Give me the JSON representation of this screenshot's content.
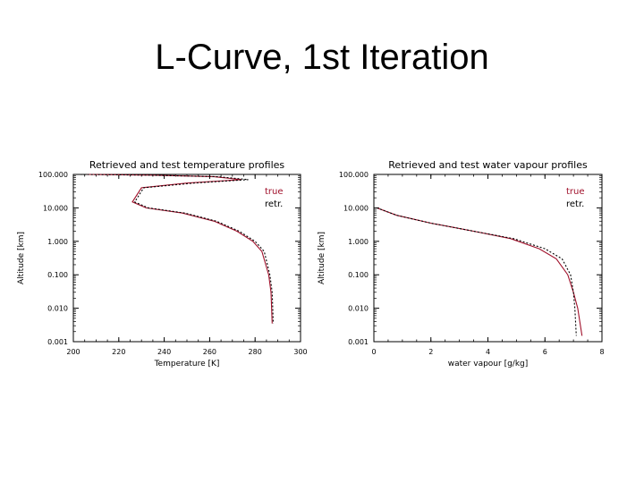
{
  "page_title": "L-Curve, 1st Iteration",
  "colors": {
    "true": "#a0102a",
    "retr": "#000000"
  },
  "chart_data": [
    {
      "type": "line",
      "title": "Retrieved and test temperature profiles",
      "xlabel": "Temperature [K]",
      "ylabel": "Altitude [km]",
      "xlim": [
        200,
        300
      ],
      "ylim": [
        0.001,
        100
      ],
      "y_scale": "log",
      "x_ticks": [
        "200",
        "220",
        "240",
        "260",
        "280",
        "300"
      ],
      "y_ticks": [
        "100.000",
        "10.000",
        "1.000",
        "0.100",
        "0.010",
        "0.001"
      ],
      "legend": "top-right",
      "series": [
        {
          "name": "true",
          "x": [
            206,
            235,
            262,
            274,
            250,
            230,
            226,
            232,
            248,
            262,
            272,
            279,
            283,
            286,
            287,
            287.5
          ],
          "y": [
            100,
            95,
            85,
            70,
            55,
            40,
            15,
            10,
            7,
            4,
            2,
            1,
            0.5,
            0.1,
            0.03,
            0.0035
          ]
        },
        {
          "name": "retr.",
          "x": [
            203,
            233,
            264,
            277,
            253,
            231,
            227,
            233,
            249,
            263,
            273,
            280,
            284,
            286.5,
            287.5,
            288
          ],
          "y": [
            100,
            95,
            85,
            70,
            55,
            40,
            15,
            10,
            7,
            4,
            2,
            1,
            0.5,
            0.1,
            0.03,
            0.0035
          ]
        }
      ]
    },
    {
      "type": "line",
      "title": "Retrieved and test water vapour profiles",
      "xlabel": "water vapour [g/kg]",
      "ylabel": "Altitude [km]",
      "xlim": [
        0,
        8
      ],
      "ylim": [
        0.001,
        100
      ],
      "y_scale": "log",
      "x_ticks": [
        "0",
        "2",
        "4",
        "6",
        "8"
      ],
      "y_ticks": [
        "100.000",
        "10.000",
        "1.000",
        "0.100",
        "0.010",
        "0.001"
      ],
      "legend": "top-right",
      "series": [
        {
          "name": "true",
          "x": [
            0.1,
            0.8,
            2,
            3.5,
            4.8,
            5.8,
            6.4,
            6.8,
            7,
            7.15,
            7.3
          ],
          "y": [
            10,
            6,
            3.5,
            2,
            1.2,
            0.6,
            0.3,
            0.1,
            0.03,
            0.01,
            0.0015
          ]
        },
        {
          "name": "retr.",
          "x": [
            0.1,
            0.8,
            2,
            3.5,
            4.9,
            6.0,
            6.6,
            6.9,
            7,
            7.05,
            7.1
          ],
          "y": [
            10,
            6,
            3.5,
            2,
            1.2,
            0.6,
            0.3,
            0.1,
            0.03,
            0.01,
            0.0015
          ]
        }
      ]
    }
  ]
}
